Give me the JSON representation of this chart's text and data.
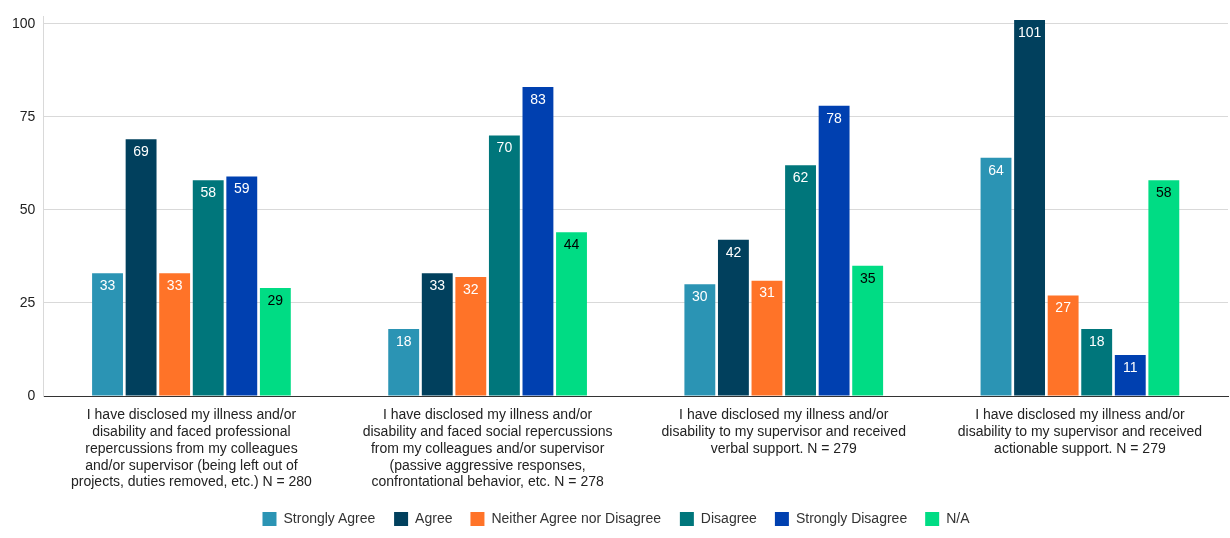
{
  "chart_data": {
    "type": "bar",
    "categories": [
      "I have disclosed my illness and/or disability and faced professional repercussions from my colleagues and/or supervisor (being left out of projects, duties removed, etc.) N = 280",
      "I have disclosed my illness and/or disability and faced social repercussions from my colleagues and/or supervisor (passive aggressive responses, confrontational behavior, etc. N = 278",
      "I have disclosed my illness and/or disability to my supervisor and received verbal support. N = 279",
      "I have disclosed my illness and/or disability to my supervisor and received actionable support. N = 279"
    ],
    "series": [
      {
        "name": "Strongly Agree",
        "color": "#2b94b4",
        "values": [
          33,
          18,
          30,
          64
        ]
      },
      {
        "name": "Agree",
        "color": "#01405d",
        "values": [
          69,
          33,
          42,
          101
        ]
      },
      {
        "name": "Neither Agree nor Disagree",
        "color": "#ff7328",
        "values": [
          33,
          32,
          31,
          27
        ]
      },
      {
        "name": "Disagree",
        "color": "#00767b",
        "values": [
          58,
          70,
          62,
          18
        ]
      },
      {
        "name": "Strongly Disagree",
        "color": "#0040b0",
        "values": [
          59,
          83,
          78,
          11
        ]
      },
      {
        "name": "N/A",
        "color": "#00dc84",
        "values": [
          29,
          44,
          35,
          58
        ]
      }
    ],
    "ylim": [
      0,
      102
    ],
    "yticks": [
      0,
      25,
      50,
      75,
      100
    ],
    "grid": "y",
    "legend": "bottom",
    "data_labels": true
  }
}
